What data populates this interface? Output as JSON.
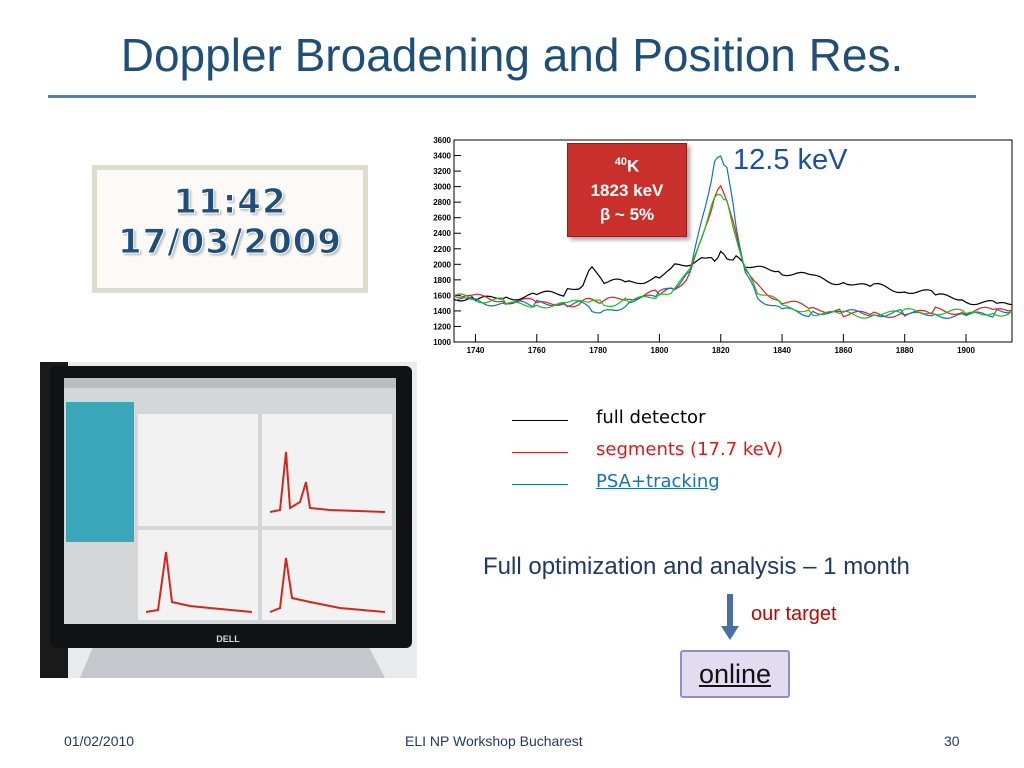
{
  "slide": {
    "title": "Doppler Broadening and Position Res.",
    "timestamp_time": "11:42",
    "timestamp_date": "17/03/2009",
    "isotope_mass": "40",
    "isotope_symbol": "K",
    "energy": "1823 keV",
    "beta": "β ~ 5%",
    "fwhm": "12.5 keV",
    "legend": [
      {
        "label": "full detector",
        "color": "#000000"
      },
      {
        "label": "segments (17.7 keV)",
        "color": "#e02020"
      },
      {
        "label": "PSA+tracking",
        "color": "#1a6fb5"
      }
    ],
    "optimization_text": "Full optimization and analysis – 1 month",
    "target_text": "our target",
    "online_text": "online",
    "monitor_brand": "DELL",
    "footer": {
      "date": "01/02/2010",
      "center": "ELI NP Workshop Bucharest",
      "page": "30"
    }
  },
  "chart_data": {
    "type": "line",
    "xlim": [
      1733,
      1915
    ],
    "ylim": [
      1000,
      3600
    ],
    "x_ticks": [
      1740,
      1760,
      1780,
      1800,
      1820,
      1840,
      1860,
      1880,
      1900
    ],
    "y_ticks": [
      1000,
      1200,
      1400,
      1600,
      1800,
      2000,
      2200,
      2400,
      2600,
      2800,
      3000,
      3200,
      3400,
      3600
    ],
    "x": [
      1733,
      1740,
      1750,
      1760,
      1770,
      1775,
      1778,
      1782,
      1790,
      1800,
      1805,
      1810,
      1815,
      1818,
      1820,
      1822,
      1825,
      1828,
      1832,
      1840,
      1850,
      1860,
      1870,
      1880,
      1890,
      1900,
      1910,
      1915
    ],
    "series": [
      {
        "name": "full detector",
        "color": "#000000",
        "values": [
          1550,
          1560,
          1590,
          1620,
          1650,
          1720,
          1950,
          1800,
          1780,
          1850,
          1950,
          2000,
          2050,
          2100,
          2150,
          2100,
          2050,
          1980,
          1950,
          1920,
          1850,
          1780,
          1700,
          1650,
          1600,
          1550,
          1500,
          1480
        ]
      },
      {
        "name": "segments (17.7 keV)",
        "color": "#e02020",
        "values": [
          1600,
          1560,
          1520,
          1500,
          1510,
          1520,
          1550,
          1500,
          1560,
          1620,
          1700,
          1900,
          2450,
          2850,
          3000,
          2850,
          2400,
          1950,
          1700,
          1500,
          1420,
          1380,
          1370,
          1380,
          1390,
          1370,
          1400,
          1410
        ]
      },
      {
        "name": "PSA+tracking",
        "color": "#1a6fb5",
        "values": [
          1580,
          1540,
          1500,
          1480,
          1480,
          1490,
          1450,
          1380,
          1520,
          1600,
          1700,
          1900,
          2800,
          3300,
          3400,
          3200,
          2500,
          1900,
          1600,
          1420,
          1380,
          1360,
          1350,
          1360,
          1370,
          1350,
          1380,
          1400
        ]
      },
      {
        "name": "",
        "color": "#22bb22",
        "values": [
          1570,
          1550,
          1510,
          1490,
          1500,
          1500,
          1530,
          1470,
          1550,
          1610,
          1700,
          1900,
          2500,
          2850,
          2950,
          2800,
          2350,
          1900,
          1650,
          1460,
          1400,
          1370,
          1360,
          1370,
          1380,
          1360,
          1390,
          1400
        ]
      }
    ]
  }
}
